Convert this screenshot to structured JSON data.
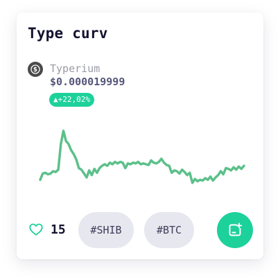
{
  "card": {
    "title": "Type curv",
    "coin": {
      "icon": "dollar-coin-icon",
      "name": "Typerium",
      "price": "$0.000019999",
      "change": "▲+22,02%"
    },
    "likes": {
      "icon": "heart-icon",
      "count": "15"
    },
    "tags": [
      "#SHIB",
      "#BTC"
    ],
    "add_button_icon": "add-to-collection-icon"
  },
  "colors": {
    "accent": "#1dd19b",
    "line": "#5cc08a",
    "title": "#131330",
    "tag_bg": "#e7e7ef"
  },
  "chart_data": {
    "type": "line",
    "title": "",
    "xlabel": "",
    "ylabel": "",
    "grid": false,
    "x": [
      0,
      1,
      2,
      3,
      4,
      5,
      6,
      7,
      8,
      9,
      10,
      11,
      12,
      13,
      14,
      15,
      16,
      17,
      18,
      19,
      20,
      21,
      22,
      23,
      24,
      25,
      26,
      27,
      28,
      29,
      30,
      31,
      32,
      33,
      34,
      35,
      36,
      37,
      38,
      39,
      40,
      41,
      42,
      43,
      44,
      45,
      46,
      47,
      48,
      49,
      50,
      51,
      52,
      53,
      54,
      55,
      56,
      57,
      58,
      59,
      60,
      61,
      62,
      63,
      64,
      65,
      66,
      67,
      68,
      69,
      70,
      71,
      72,
      73,
      74,
      75,
      76,
      77,
      78,
      79
    ],
    "series": [
      {
        "values": [
          22,
          30,
          31,
          29,
          30,
          33,
          32,
          35,
          68,
          85,
          72,
          68,
          60,
          55,
          48,
          37,
          35,
          30,
          25,
          34,
          28,
          36,
          31,
          37,
          40,
          42,
          40,
          44,
          42,
          45,
          43,
          45,
          44,
          37,
          43,
          42,
          44,
          43,
          45,
          42,
          43,
          42,
          41,
          47,
          44,
          43,
          45,
          49,
          44,
          41,
          40,
          31,
          34,
          33,
          30,
          35,
          32,
          28,
          31,
          18,
          23,
          20,
          22,
          21,
          24,
          22,
          26,
          21,
          25,
          28,
          33,
          29,
          37,
          36,
          34,
          38,
          35,
          39,
          36,
          40
        ]
      }
    ],
    "ylim": [
      0,
      100
    ]
  }
}
